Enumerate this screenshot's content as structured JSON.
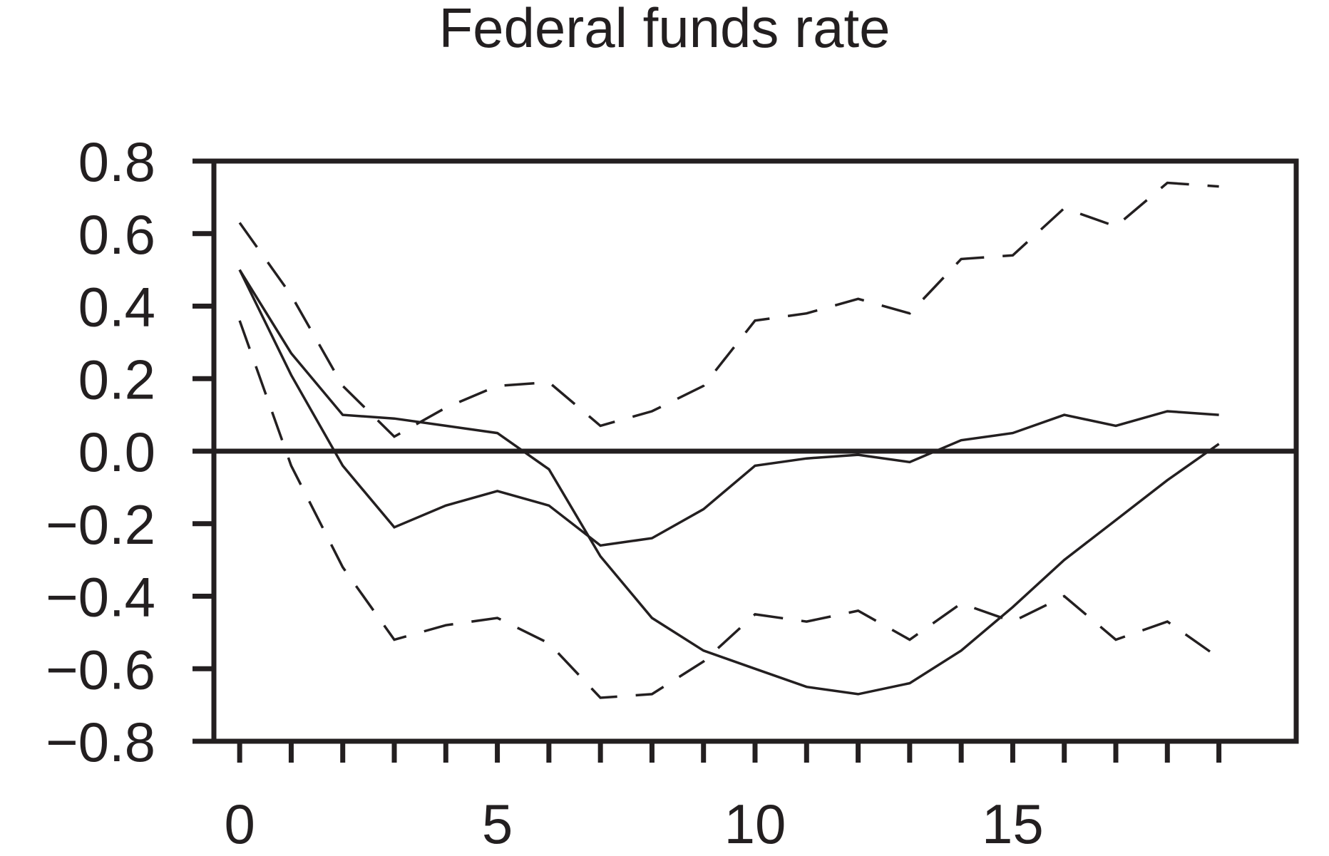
{
  "chart_data": {
    "type": "line",
    "title": "Federal funds rate",
    "xlabel": "",
    "ylabel": "",
    "xlim": [
      -0.5,
      20.5
    ],
    "ylim": [
      -0.8,
      0.8
    ],
    "grid": false,
    "legend": "none",
    "zero_line": true,
    "colors": {
      "line": "#231f20",
      "background": "#ffffff"
    },
    "x_ticks": [
      0,
      1,
      2,
      3,
      4,
      5,
      6,
      7,
      8,
      9,
      10,
      11,
      12,
      13,
      14,
      15,
      16,
      17,
      18,
      19
    ],
    "x_tick_labels": [
      {
        "value": 0,
        "label": "0"
      },
      {
        "value": 5,
        "label": "5"
      },
      {
        "value": 10,
        "label": "10"
      },
      {
        "value": 15,
        "label": "15"
      }
    ],
    "y_tick_labels": [
      {
        "value": 0.8,
        "label": "0.8"
      },
      {
        "value": 0.6,
        "label": "0.6"
      },
      {
        "value": 0.4,
        "label": "0.4"
      },
      {
        "value": 0.2,
        "label": "0.2"
      },
      {
        "value": 0.0,
        "label": "0.0"
      },
      {
        "value": -0.2,
        "label": "−0.2"
      },
      {
        "value": -0.4,
        "label": "−0.4"
      },
      {
        "value": -0.6,
        "label": "−0.6"
      },
      {
        "value": -0.8,
        "label": "−0.8"
      }
    ],
    "x": [
      0,
      1,
      2,
      3,
      4,
      5,
      6,
      7,
      8,
      9,
      10,
      11,
      12,
      13,
      14,
      15,
      16,
      17,
      18,
      19
    ],
    "series": [
      {
        "style": "solid",
        "values": [
          0.5,
          0.27,
          0.1,
          0.09,
          0.07,
          0.05,
          -0.05,
          -0.29,
          -0.46,
          -0.55,
          -0.6,
          -0.65,
          -0.67,
          -0.64,
          -0.55,
          -0.43,
          -0.3,
          -0.19,
          -0.08,
          0.02
        ]
      },
      {
        "style": "solid",
        "values": [
          0.5,
          0.21,
          -0.04,
          -0.21,
          -0.15,
          -0.11,
          -0.15,
          -0.26,
          -0.24,
          -0.16,
          -0.04,
          -0.02,
          -0.01,
          -0.03,
          0.03,
          0.05,
          0.1,
          0.07,
          0.11,
          0.1
        ]
      },
      {
        "style": "dashed",
        "values": [
          0.63,
          0.43,
          0.18,
          0.04,
          0.12,
          0.18,
          0.19,
          0.07,
          0.11,
          0.18,
          0.36,
          0.38,
          0.42,
          0.38,
          0.53,
          0.54,
          0.67,
          0.62,
          0.74,
          0.73
        ]
      },
      {
        "style": "dashed",
        "values": [
          0.36,
          -0.04,
          -0.32,
          -0.52,
          -0.48,
          -0.46,
          -0.53,
          -0.68,
          -0.67,
          -0.58,
          -0.45,
          -0.47,
          -0.44,
          -0.52,
          -0.42,
          -0.47,
          -0.4,
          -0.52,
          -0.47,
          -0.57
        ]
      }
    ]
  }
}
